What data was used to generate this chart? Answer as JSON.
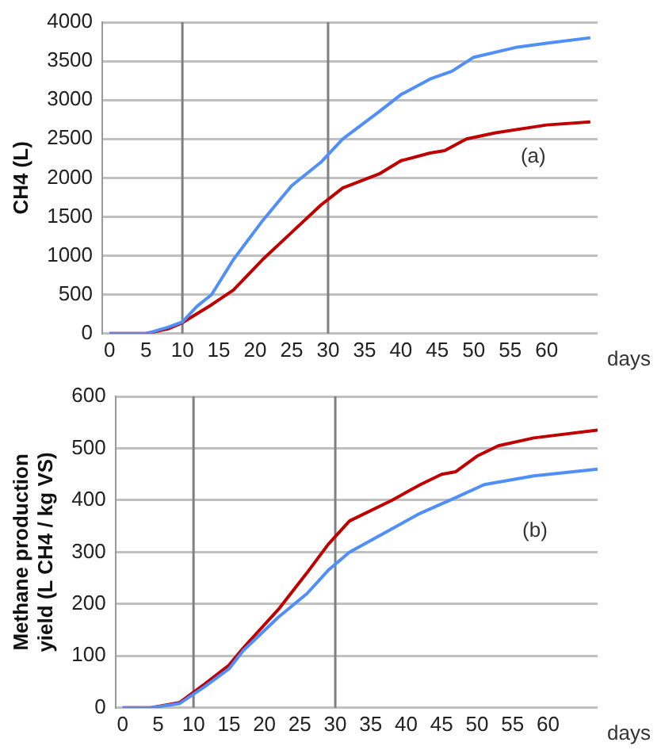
{
  "chart_data": [
    {
      "type": "line",
      "ylabel": "CH4 (L)",
      "xlabel": "days",
      "annotations": [
        "(a)"
      ],
      "xlim": [
        -1,
        67
      ],
      "xticks": [
        0,
        5,
        10,
        15,
        20,
        25,
        30,
        35,
        40,
        45,
        50,
        55,
        60
      ],
      "ylim": [
        0,
        4000
      ],
      "yticks": [
        0,
        500,
        1000,
        1500,
        2000,
        2500,
        3000,
        3500,
        4000
      ],
      "grid": "y",
      "marker": "none",
      "line_style": "solid",
      "legend": false,
      "ref_lines": [
        {
          "axis": "x",
          "value": 10,
          "color": "#808080"
        },
        {
          "axis": "x",
          "value": 30,
          "color": "#808080"
        }
      ],
      "series": [
        {
          "color": "#4f8ff7",
          "x": [
            0,
            5,
            8,
            10,
            12,
            14,
            17,
            21,
            25,
            29,
            32,
            37,
            40,
            44,
            47,
            50,
            56,
            60,
            66
          ],
          "values": [
            0,
            0,
            80,
            150,
            350,
            500,
            950,
            1450,
            1900,
            2200,
            2500,
            2850,
            3070,
            3270,
            3370,
            3550,
            3680,
            3730,
            3800
          ]
        },
        {
          "color": "#c00000",
          "x": [
            0,
            5,
            8,
            10,
            14,
            17,
            21,
            25,
            29,
            32,
            37,
            40,
            44,
            46,
            49,
            53,
            60,
            66
          ],
          "values": [
            0,
            0,
            60,
            140,
            370,
            560,
            950,
            1300,
            1650,
            1870,
            2050,
            2220,
            2320,
            2350,
            2500,
            2580,
            2680,
            2720
          ]
        }
      ]
    },
    {
      "type": "line",
      "ylabel": "Methane production yield (L CH4 / kg VS)",
      "xlabel": "days",
      "annotations": [
        "(b)"
      ],
      "xlim": [
        -1,
        67
      ],
      "xticks": [
        0,
        5,
        10,
        15,
        20,
        25,
        30,
        35,
        40,
        45,
        50,
        55,
        60
      ],
      "ylim": [
        0,
        600
      ],
      "yticks": [
        0,
        100,
        200,
        300,
        400,
        500,
        600
      ],
      "grid": "y",
      "marker": "none",
      "line_style": "solid",
      "legend": false,
      "ref_lines": [
        {
          "axis": "x",
          "value": 10,
          "color": "#808080"
        },
        {
          "axis": "x",
          "value": 30,
          "color": "#808080"
        }
      ],
      "series": [
        {
          "color": "#4f8ff7",
          "x": [
            0,
            4,
            8,
            11.5,
            15,
            17,
            22,
            26,
            29,
            32,
            38,
            42,
            47,
            51,
            58,
            67
          ],
          "values": [
            0,
            0,
            8,
            40,
            75,
            110,
            175,
            220,
            265,
            300,
            345,
            375,
            405,
            430,
            447,
            460
          ]
        },
        {
          "color": "#c00000",
          "x": [
            0,
            4,
            8,
            11.5,
            15,
            17,
            22,
            26,
            29,
            32,
            38,
            42,
            45,
            47,
            50,
            53,
            58,
            67
          ],
          "values": [
            0,
            0,
            10,
            45,
            82,
            115,
            190,
            260,
            315,
            360,
            400,
            430,
            450,
            455,
            485,
            505,
            520,
            535
          ]
        }
      ]
    }
  ]
}
